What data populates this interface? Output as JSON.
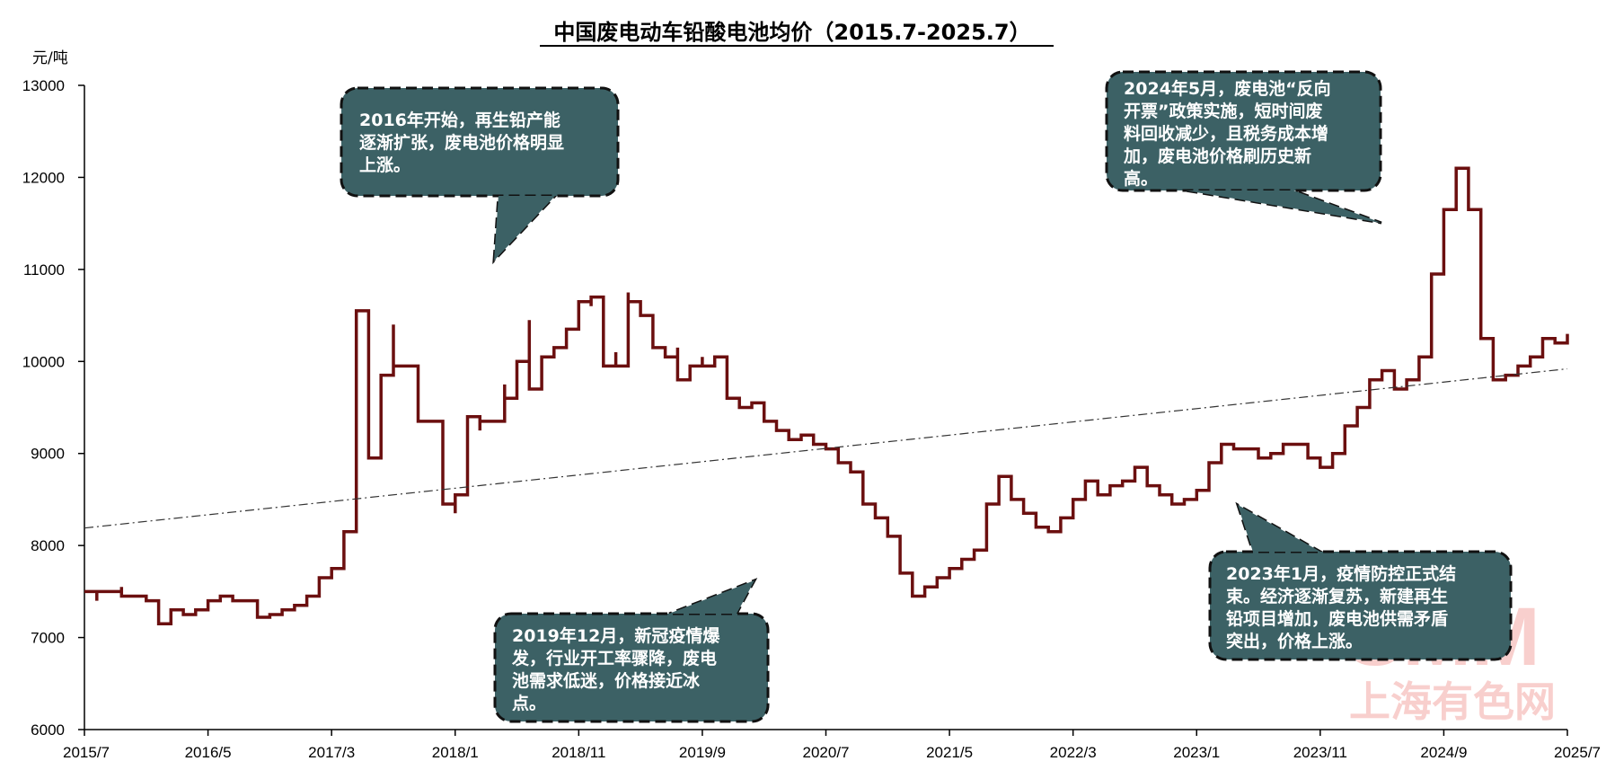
{
  "chart_data": {
    "type": "line",
    "title": "中国废电动车铅酸电池均价（2015.7-2025.7）",
    "unit_label": "元/吨",
    "ylim": [
      6000,
      13000
    ],
    "yticks": [
      6000,
      7000,
      8000,
      9000,
      10000,
      11000,
      12000,
      13000
    ],
    "xticks": [
      "2015/7",
      "2016/5",
      "2017/3",
      "2018/1",
      "2018/11",
      "2019/9",
      "2020/7",
      "2021/5",
      "2022/3",
      "2023/1",
      "2023/11",
      "2024/9",
      "2025/7"
    ],
    "x_range_months": [
      "2015/7",
      "2025/7"
    ],
    "grid": false,
    "legend": "none",
    "line_color": "#6b0f0f",
    "trend_color": "#333333",
    "series": [
      {
        "style": "step",
        "points": [
          [
            "2015/7",
            7500
          ],
          [
            "2015/8",
            7400
          ],
          [
            "2015/8",
            7500
          ],
          [
            "2015/9",
            7500
          ],
          [
            "2015/10",
            7550
          ],
          [
            "2015/10",
            7450
          ],
          [
            "2015/11",
            7450
          ],
          [
            "2015/12",
            7400
          ],
          [
            "2016/1",
            7150
          ],
          [
            "2016/2",
            7300
          ],
          [
            "2016/3",
            7250
          ],
          [
            "2016/4",
            7300
          ],
          [
            "2016/5",
            7400
          ],
          [
            "2016/6",
            7450
          ],
          [
            "2016/7",
            7400
          ],
          [
            "2016/8",
            7400
          ],
          [
            "2016/9",
            7220
          ],
          [
            "2016/10",
            7250
          ],
          [
            "2016/11",
            7300
          ],
          [
            "2016/12",
            7350
          ],
          [
            "2017/1",
            7450
          ],
          [
            "2017/2",
            7650
          ],
          [
            "2017/3",
            7750
          ],
          [
            "2017/4",
            8150
          ],
          [
            "2017/5",
            8250
          ],
          [
            "2017/5",
            10550
          ],
          [
            "2017/6",
            10450
          ],
          [
            "2017/6",
            8950
          ],
          [
            "2017/7",
            8950
          ],
          [
            "2017/7",
            9850
          ],
          [
            "2017/8",
            10400
          ],
          [
            "2017/8",
            9950
          ],
          [
            "2017/9",
            9950
          ],
          [
            "2017/10",
            9350
          ],
          [
            "2017/11",
            9350
          ],
          [
            "2017/12",
            8450
          ],
          [
            "2018/1",
            8450
          ],
          [
            "2018/1",
            8350
          ],
          [
            "2018/1",
            8550
          ],
          [
            "2018/2",
            8600
          ],
          [
            "2018/2",
            9400
          ],
          [
            "2018/3",
            9250
          ],
          [
            "2018/3",
            9350
          ],
          [
            "2018/4",
            9350
          ],
          [
            "2018/5",
            9750
          ],
          [
            "2018/5",
            9600
          ],
          [
            "2018/6",
            9700
          ],
          [
            "2018/6",
            10000
          ],
          [
            "2018/7",
            10450
          ],
          [
            "2018/7",
            9700
          ],
          [
            "2018/8",
            9700
          ],
          [
            "2018/8",
            10050
          ],
          [
            "2018/9",
            10150
          ],
          [
            "2018/10",
            10350
          ],
          [
            "2018/11",
            10650
          ],
          [
            "2018/12",
            10600
          ],
          [
            "2018/12",
            10700
          ],
          [
            "2019/1",
            10550
          ],
          [
            "2019/1",
            9950
          ],
          [
            "2019/2",
            10100
          ],
          [
            "2019/2",
            9950
          ],
          [
            "2019/3",
            10750
          ],
          [
            "2019/3",
            10650
          ],
          [
            "2019/4",
            10500
          ],
          [
            "2019/5",
            10150
          ],
          [
            "2019/6",
            10050
          ],
          [
            "2019/7",
            10150
          ],
          [
            "2019/7",
            9800
          ],
          [
            "2019/8",
            9950
          ],
          [
            "2019/9",
            10050
          ],
          [
            "2019/9",
            9950
          ],
          [
            "2019/10",
            10050
          ],
          [
            "2019/11",
            9600
          ],
          [
            "2019/12",
            9500
          ],
          [
            "2020/1",
            9550
          ],
          [
            "2020/2",
            9350
          ],
          [
            "2020/3",
            9250
          ],
          [
            "2020/4",
            9150
          ],
          [
            "2020/5",
            9200
          ],
          [
            "2020/6",
            9100
          ],
          [
            "2020/7",
            9050
          ],
          [
            "2020/8",
            8900
          ],
          [
            "2020/9",
            8800
          ],
          [
            "2020/10",
            8450
          ],
          [
            "2020/11",
            8300
          ],
          [
            "2020/12",
            8100
          ],
          [
            "2021/1",
            7700
          ],
          [
            "2021/2",
            7450
          ],
          [
            "2021/3",
            7550
          ],
          [
            "2021/4",
            7650
          ],
          [
            "2021/5",
            7750
          ],
          [
            "2021/6",
            7850
          ],
          [
            "2021/7",
            7950
          ],
          [
            "2021/8",
            8450
          ],
          [
            "2021/9",
            8750
          ],
          [
            "2021/10",
            8500
          ],
          [
            "2021/11",
            8350
          ],
          [
            "2021/12",
            8200
          ],
          [
            "2022/1",
            8150
          ],
          [
            "2022/2",
            8300
          ],
          [
            "2022/3",
            8500
          ],
          [
            "2022/4",
            8700
          ],
          [
            "2022/5",
            8550
          ],
          [
            "2022/6",
            8650
          ],
          [
            "2022/7",
            8700
          ],
          [
            "2022/8",
            8850
          ],
          [
            "2022/9",
            8650
          ],
          [
            "2022/10",
            8550
          ],
          [
            "2022/11",
            8450
          ],
          [
            "2022/12",
            8500
          ],
          [
            "2023/1",
            8600
          ],
          [
            "2023/2",
            8900
          ],
          [
            "2023/3",
            9100
          ],
          [
            "2023/4",
            9050
          ],
          [
            "2023/5",
            9050
          ],
          [
            "2023/6",
            8950
          ],
          [
            "2023/7",
            9000
          ],
          [
            "2023/8",
            9100
          ],
          [
            "2023/9",
            9100
          ],
          [
            "2023/10",
            8950
          ],
          [
            "2023/11",
            8850
          ],
          [
            "2023/12",
            9000
          ],
          [
            "2024/1",
            9300
          ],
          [
            "2024/2",
            9500
          ],
          [
            "2024/3",
            9800
          ],
          [
            "2024/4",
            9900
          ],
          [
            "2024/5",
            9700
          ],
          [
            "2024/6",
            9800
          ],
          [
            "2024/7",
            10050
          ],
          [
            "2024/8",
            10950
          ],
          [
            "2024/9",
            11650
          ],
          [
            "2024/10",
            12100
          ],
          [
            "2024/11",
            11650
          ],
          [
            "2024/12",
            10250
          ],
          [
            "2025/1",
            9800
          ],
          [
            "2025/2",
            9850
          ],
          [
            "2025/3",
            9950
          ],
          [
            "2025/4",
            10050
          ],
          [
            "2025/5",
            10250
          ],
          [
            "2025/6",
            10200
          ],
          [
            "2025/7",
            10300
          ]
        ]
      },
      {
        "style": "trend",
        "points": [
          [
            "2015/7",
            8190
          ],
          [
            "2025/7",
            9920
          ]
        ]
      }
    ]
  },
  "annotations": [
    {
      "lines": [
        "2016年开始，再生铅产能",
        "逐渐扩张，废电池价格明显",
        "上涨。"
      ]
    },
    {
      "lines": [
        "2019年12月，新冠疫情爆",
        "发，行业开工率骤降，废电",
        "池需求低迷，价格接近冰",
        "点。"
      ]
    },
    {
      "lines": [
        "2024年5月，废电池“反向",
        "开票”政策实施，短时间废",
        "料回收减少，且税务成本增",
        "加，废电池价格刷历史新",
        "高。"
      ]
    },
    {
      "lines": [
        "2023年1月，疫情防控正式结",
        "束。经济逐渐复苏，新建再生",
        "铅项目增加，废电池供需矛盾",
        "突出，价格上涨。"
      ]
    }
  ],
  "watermark": {
    "logo": "SMM",
    "text": "上海有色网"
  }
}
